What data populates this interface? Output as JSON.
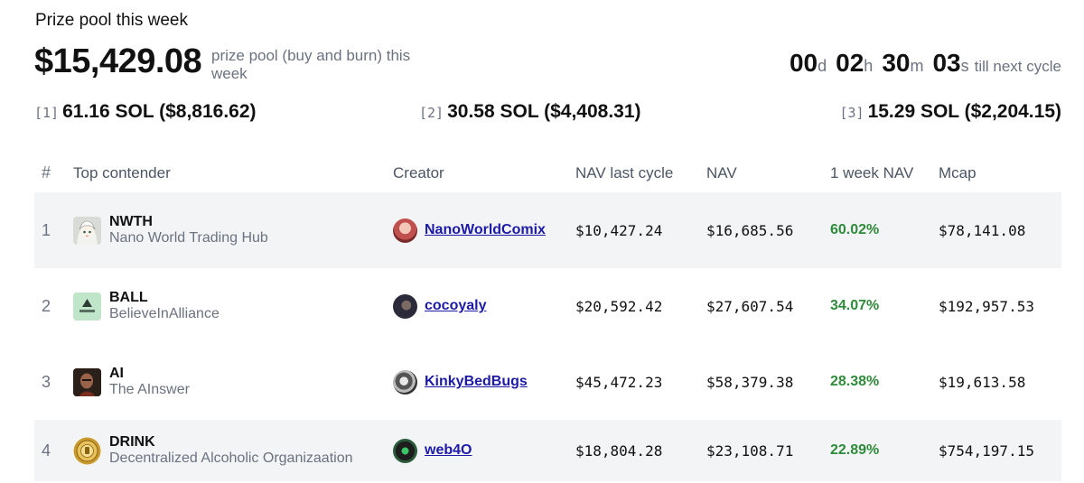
{
  "header": {
    "title": "Prize pool this week",
    "amount": "$15,429.08",
    "pool_desc": "prize pool (buy and burn) this week"
  },
  "countdown": {
    "days": "00",
    "days_unit": "d",
    "hours": "02",
    "hours_unit": "h",
    "minutes": "30",
    "minutes_unit": "m",
    "seconds": "03",
    "seconds_unit": "s",
    "suffix": "till next cycle"
  },
  "prizes": [
    {
      "rank": "[1]",
      "amount": "61.16 SOL ($8,816.62)"
    },
    {
      "rank": "[2]",
      "amount": "30.58 SOL ($4,408.31)"
    },
    {
      "rank": "[3]",
      "amount": "15.29 SOL ($2,204.15)"
    }
  ],
  "table": {
    "headers": [
      "#",
      "Top contender",
      "Creator",
      "NAV last cycle",
      "NAV",
      "1 week NAV",
      "Mcap"
    ],
    "rows": [
      {
        "rank": "1",
        "symbol": "NWTH",
        "name": "Nano World Trading Hub",
        "creator": "NanoWorldComix",
        "nav_last": "$10,427.24",
        "nav": "$16,685.56",
        "week": "60.02%",
        "mcap": "$78,141.08"
      },
      {
        "rank": "2",
        "symbol": "BALL",
        "name": "BelieveInAlliance",
        "creator": "cocoyaly",
        "nav_last": "$20,592.42",
        "nav": "$27,607.54",
        "week": "34.07%",
        "mcap": "$192,957.53"
      },
      {
        "rank": "3",
        "symbol": "AI",
        "name": "The AInswer",
        "creator": "KinkyBedBugs",
        "nav_last": "$45,472.23",
        "nav": "$58,379.38",
        "week": "28.38%",
        "mcap": "$19,613.58"
      },
      {
        "rank": "4",
        "symbol": "DRINK",
        "name": "Decentralized Alcoholic Organizaation",
        "creator": "web4O",
        "nav_last": "$18,804.28",
        "nav": "$23,108.71",
        "week": "22.89%",
        "mcap": "$754,197.15"
      }
    ]
  },
  "icons": {
    "token_1": "anime-avatar-icon",
    "token_2": "alliance-logo-icon",
    "token_3": "portrait-icon",
    "token_4": "gold-coin-icon"
  },
  "colors": {
    "positive": "#2e8b3a",
    "link": "#1d1aa8",
    "row_shade": "#f3f4f6"
  }
}
